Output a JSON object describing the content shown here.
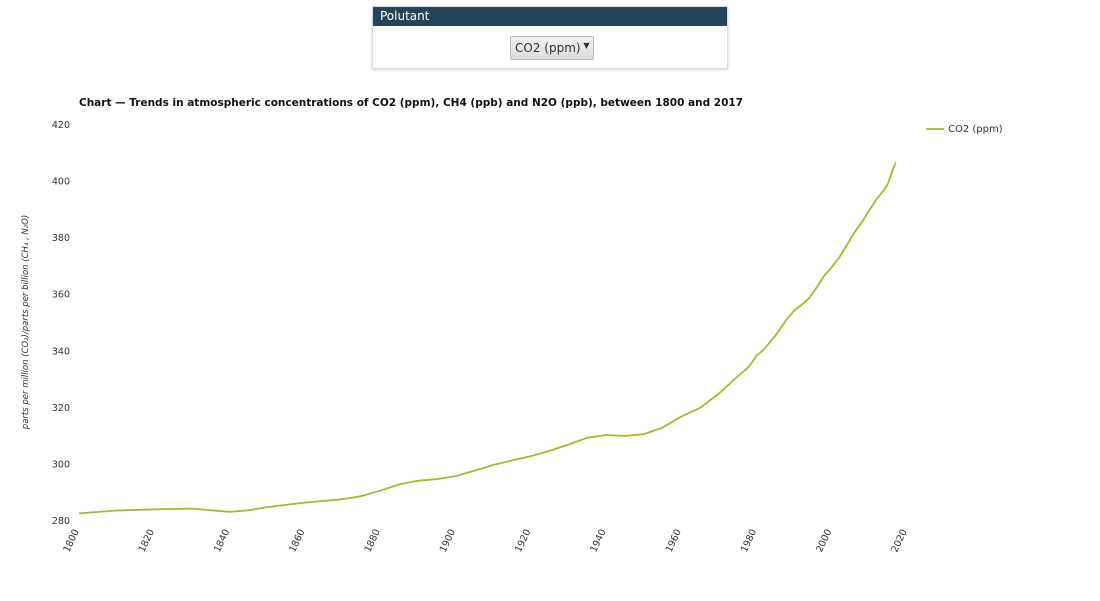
{
  "filter": {
    "header": "Polutant",
    "selected": "CO2 (ppm)"
  },
  "chart_data": {
    "type": "line",
    "title": "Chart — Trends in atmospheric concentrations of CO2 (ppm), CH4 (ppb) and N2O (ppb), between 1800 and 2017",
    "xlabel": "",
    "ylabel": "parts per million (CO₂)/parts per billion (CH₄ , N₂O)",
    "xlim": [
      1800,
      2020
    ],
    "ylim": [
      280,
      420
    ],
    "x_ticks": [
      1800,
      1820,
      1840,
      1860,
      1880,
      1900,
      1920,
      1940,
      1960,
      1980,
      2000,
      2020
    ],
    "y_ticks": [
      280,
      300,
      320,
      340,
      360,
      380,
      400,
      420
    ],
    "grid": false,
    "legend_position": "top-right",
    "color": "#a8b82b",
    "series": [
      {
        "name": "CO2 (ppm)",
        "x": [
          1800,
          1810,
          1820,
          1830,
          1840,
          1845,
          1850,
          1860,
          1870,
          1875,
          1880,
          1885,
          1890,
          1895,
          1900,
          1905,
          1910,
          1915,
          1920,
          1925,
          1930,
          1935,
          1940,
          1945,
          1950,
          1955,
          1960,
          1965,
          1970,
          1975,
          1978,
          1980,
          1982,
          1985,
          1988,
          1990,
          1992,
          1994,
          1996,
          1998,
          2000,
          2002,
          2004,
          2006,
          2008,
          2010,
          2012,
          2014,
          2015,
          2016,
          2017
        ],
        "y": [
          282.7,
          283.7,
          284.1,
          284.4,
          283.2,
          283.8,
          284.9,
          286.5,
          287.7,
          288.8,
          290.7,
          292.9,
          294.2,
          294.8,
          295.8,
          297.8,
          299.8,
          301.4,
          302.9,
          304.8,
          307.0,
          309.4,
          310.4,
          310.1,
          310.7,
          313.0,
          316.9,
          320.0,
          325.0,
          331.1,
          334.5,
          338.4,
          340.7,
          345.5,
          351.2,
          354.4,
          356.4,
          358.8,
          362.6,
          366.7,
          369.7,
          373.2,
          377.5,
          381.9,
          385.6,
          389.9,
          393.9,
          397.2,
          399.4,
          403.3,
          406.8
        ]
      }
    ]
  }
}
